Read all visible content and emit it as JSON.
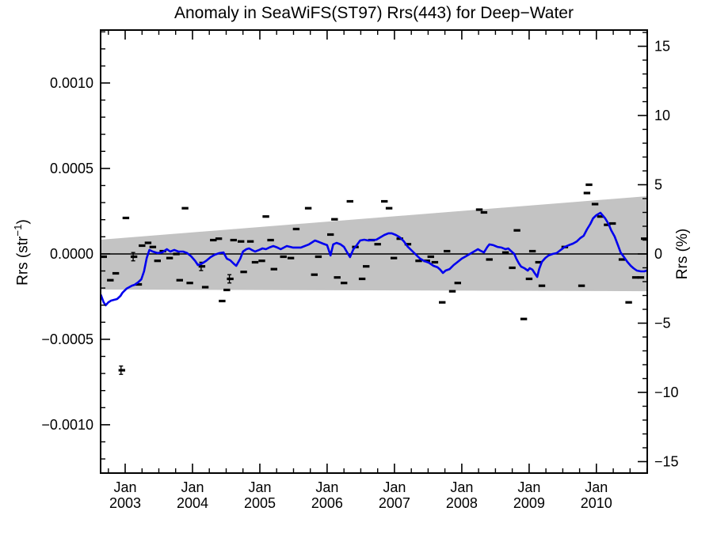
{
  "chart_data": {
    "type": "scatter",
    "title": "Anomaly in SeaWiFS(ST97) Rrs(443) for Deep−Water",
    "ylabel_left": {
      "pre": "Rrs (str",
      "sup": "−1",
      "post": ")"
    },
    "ylabel_right": "Rrs (%)",
    "axes": {
      "x_range": [
        2002.635,
        2010.755
      ],
      "y_pct_range": [
        -15.83,
        16.17
      ],
      "y_rrs_range": [
        -0.001283,
        0.00131
      ],
      "x_ticks": [
        {
          "year": 2003,
          "month_label": "Jan",
          "year_label": "2003"
        },
        {
          "year": 2004,
          "month_label": "Jan",
          "year_label": "2004"
        },
        {
          "year": 2005,
          "month_label": "Jan",
          "year_label": "2005"
        },
        {
          "year": 2006,
          "month_label": "Jan",
          "year_label": "2006"
        },
        {
          "year": 2007,
          "month_label": "Jan",
          "year_label": "2007"
        },
        {
          "year": 2008,
          "month_label": "Jan",
          "year_label": "2008"
        },
        {
          "year": 2009,
          "month_label": "Jan",
          "year_label": "2009"
        },
        {
          "year": 2010,
          "month_label": "Jan",
          "year_label": "2010"
        }
      ],
      "x_minor_step": 0.25,
      "y_left_ticks": [
        {
          "value": 0.001,
          "label": "0.0010"
        },
        {
          "value": 0.0005,
          "label": "0.0005"
        },
        {
          "value": 0.0,
          "label": "0.0000"
        },
        {
          "value": -0.0005,
          "label": "−0.0005"
        },
        {
          "value": -0.001,
          "label": "−0.0010"
        }
      ],
      "y_left_minor_step": 0.0001,
      "y_right_ticks": [
        {
          "value": 15,
          "label": "15"
        },
        {
          "value": 10,
          "label": "10"
        },
        {
          "value": 5,
          "label": "5"
        },
        {
          "value": 0,
          "label": "0"
        },
        {
          "value": -5,
          "label": "−5"
        },
        {
          "value": -10,
          "label": "−10"
        },
        {
          "value": -15,
          "label": "−15"
        }
      ],
      "y_right_minor_step": 1,
      "grid": "off",
      "legend": "none"
    },
    "series": [
      {
        "name": "trend-significance-band",
        "type": "band",
        "unit": "%",
        "color": "#c3c3c3",
        "x": [
          2002.635,
          2010.755
        ],
        "top": [
          1.03,
          4.17
        ],
        "bottom": [
          -2.57,
          -2.69
        ]
      },
      {
        "name": "monthly-anomaly-points",
        "type": "scatter",
        "unit": "%",
        "color": "#000000",
        "points": [
          [
            2002.68,
            -0.2
          ],
          [
            2002.78,
            -1.9
          ],
          [
            2002.86,
            -1.4
          ],
          [
            2003.01,
            2.6
          ],
          [
            2003.2,
            -2.2
          ],
          [
            2003.25,
            0.6
          ],
          [
            2003.34,
            0.8
          ],
          [
            2003.41,
            0.5
          ],
          [
            2003.48,
            -0.5
          ],
          [
            2003.56,
            0.2
          ],
          [
            2003.66,
            -0.3
          ],
          [
            2003.76,
            0.0
          ],
          [
            2003.81,
            -1.9
          ],
          [
            2003.89,
            3.3
          ],
          [
            2003.96,
            -2.1
          ],
          [
            2004.19,
            -2.4
          ],
          [
            2004.31,
            1.0
          ],
          [
            2004.39,
            1.1
          ],
          [
            2004.44,
            -3.4
          ],
          [
            2004.51,
            -2.6
          ],
          [
            2004.61,
            1.0
          ],
          [
            2004.72,
            0.9
          ],
          [
            2004.76,
            -1.3
          ],
          [
            2004.86,
            0.9
          ],
          [
            2004.93,
            -0.6
          ],
          [
            2005.03,
            -0.5
          ],
          [
            2005.09,
            2.7
          ],
          [
            2005.16,
            1.0
          ],
          [
            2005.21,
            -1.1
          ],
          [
            2005.35,
            -0.2
          ],
          [
            2005.46,
            -0.3
          ],
          [
            2005.54,
            1.8
          ],
          [
            2005.72,
            3.3
          ],
          [
            2005.81,
            -1.5
          ],
          [
            2005.87,
            -0.2
          ],
          [
            2006.05,
            1.4
          ],
          [
            2006.11,
            2.5
          ],
          [
            2006.15,
            -1.7
          ],
          [
            2006.25,
            -2.1
          ],
          [
            2006.34,
            3.8
          ],
          [
            2006.42,
            0.5
          ],
          [
            2006.52,
            -1.8
          ],
          [
            2006.58,
            -0.9
          ],
          [
            2006.66,
            1.0
          ],
          [
            2006.75,
            0.7
          ],
          [
            2006.85,
            3.8
          ],
          [
            2006.92,
            3.3
          ],
          [
            2006.99,
            -0.3
          ],
          [
            2007.08,
            1.1
          ],
          [
            2007.2,
            0.7
          ],
          [
            2007.36,
            -0.5
          ],
          [
            2007.48,
            -0.5
          ],
          [
            2007.54,
            -0.2
          ],
          [
            2007.6,
            -0.6
          ],
          [
            2007.71,
            -3.5
          ],
          [
            2007.78,
            0.2
          ],
          [
            2007.86,
            -2.7
          ],
          [
            2007.94,
            -2.1
          ],
          [
            2008.26,
            3.2
          ],
          [
            2008.33,
            3.0
          ],
          [
            2008.41,
            -0.4
          ],
          [
            2008.65,
            0.1
          ],
          [
            2008.75,
            -1.0
          ],
          [
            2008.82,
            1.7
          ],
          [
            2008.92,
            -4.7
          ],
          [
            2009.0,
            -1.8
          ],
          [
            2009.05,
            0.2
          ],
          [
            2009.14,
            -0.6
          ],
          [
            2009.19,
            -2.3
          ],
          [
            2009.53,
            0.5
          ],
          [
            2009.78,
            -2.3
          ],
          [
            2009.86,
            4.4
          ],
          [
            2009.89,
            5.0
          ],
          [
            2009.98,
            3.6
          ],
          [
            2010.06,
            2.7
          ],
          [
            2010.16,
            2.1
          ],
          [
            2010.24,
            2.2
          ],
          [
            2010.38,
            -0.4
          ],
          [
            2010.48,
            -3.5
          ],
          [
            2010.58,
            -1.7
          ],
          [
            2010.66,
            -1.7
          ],
          [
            2010.71,
            1.1
          ]
        ],
        "error_bar_points": [
          [
            2002.95,
            -8.4,
            0.3
          ],
          [
            2003.13,
            -0.2,
            0.3
          ],
          [
            2004.14,
            -0.9,
            0.3
          ],
          [
            2004.56,
            -1.8,
            0.3
          ]
        ]
      },
      {
        "name": "smoothed-anomaly-line",
        "type": "line",
        "unit": "%",
        "color": "#0000ee",
        "points": [
          [
            2002.64,
            -2.97
          ],
          [
            2002.68,
            -3.49
          ],
          [
            2002.71,
            -3.71
          ],
          [
            2002.75,
            -3.49
          ],
          [
            2002.79,
            -3.37
          ],
          [
            2002.84,
            -3.31
          ],
          [
            2002.88,
            -3.26
          ],
          [
            2002.93,
            -3.03
          ],
          [
            2002.96,
            -2.8
          ],
          [
            2003.02,
            -2.51
          ],
          [
            2003.06,
            -2.4
          ],
          [
            2003.1,
            -2.29
          ],
          [
            2003.14,
            -2.23
          ],
          [
            2003.19,
            -2.06
          ],
          [
            2003.24,
            -1.83
          ],
          [
            2003.28,
            -1.26
          ],
          [
            2003.32,
            -0.29
          ],
          [
            2003.36,
            0.29
          ],
          [
            2003.41,
            0.17
          ],
          [
            2003.48,
            0.06
          ],
          [
            2003.55,
            0.11
          ],
          [
            2003.62,
            0.34
          ],
          [
            2003.67,
            0.17
          ],
          [
            2003.73,
            0.29
          ],
          [
            2003.79,
            0.17
          ],
          [
            2003.86,
            0.17
          ],
          [
            2003.92,
            0.06
          ],
          [
            2003.98,
            -0.17
          ],
          [
            2004.04,
            -0.51
          ],
          [
            2004.08,
            -0.8
          ],
          [
            2004.14,
            -0.69
          ],
          [
            2004.2,
            -0.51
          ],
          [
            2004.27,
            -0.23
          ],
          [
            2004.33,
            -0.06
          ],
          [
            2004.4,
            0.06
          ],
          [
            2004.46,
            0.11
          ],
          [
            2004.51,
            -0.34
          ],
          [
            2004.56,
            -0.46
          ],
          [
            2004.61,
            -0.69
          ],
          [
            2004.65,
            -0.86
          ],
          [
            2004.71,
            -0.34
          ],
          [
            2004.75,
            0.17
          ],
          [
            2004.8,
            0.34
          ],
          [
            2004.84,
            0.4
          ],
          [
            2004.88,
            0.29
          ],
          [
            2004.93,
            0.17
          ],
          [
            2004.99,
            0.29
          ],
          [
            2005.04,
            0.4
          ],
          [
            2005.09,
            0.34
          ],
          [
            2005.14,
            0.46
          ],
          [
            2005.2,
            0.57
          ],
          [
            2005.26,
            0.46
          ],
          [
            2005.31,
            0.34
          ],
          [
            2005.4,
            0.57
          ],
          [
            2005.49,
            0.46
          ],
          [
            2005.61,
            0.46
          ],
          [
            2005.73,
            0.69
          ],
          [
            2005.82,
            0.97
          ],
          [
            2005.88,
            0.86
          ],
          [
            2005.94,
            0.74
          ],
          [
            2006.0,
            0.63
          ],
          [
            2006.05,
            -0.11
          ],
          [
            2006.09,
            0.69
          ],
          [
            2006.14,
            0.8
          ],
          [
            2006.2,
            0.69
          ],
          [
            2006.25,
            0.51
          ],
          [
            2006.29,
            0.17
          ],
          [
            2006.34,
            -0.23
          ],
          [
            2006.39,
            0.34
          ],
          [
            2006.44,
            0.63
          ],
          [
            2006.49,
            0.97
          ],
          [
            2006.55,
            1.03
          ],
          [
            2006.61,
            0.97
          ],
          [
            2006.73,
            1.03
          ],
          [
            2006.79,
            1.2
          ],
          [
            2006.85,
            1.37
          ],
          [
            2006.91,
            1.49
          ],
          [
            2006.96,
            1.49
          ],
          [
            2007.02,
            1.37
          ],
          [
            2007.08,
            1.2
          ],
          [
            2007.14,
            0.91
          ],
          [
            2007.2,
            0.51
          ],
          [
            2007.26,
            0.23
          ],
          [
            2007.32,
            -0.06
          ],
          [
            2007.38,
            -0.34
          ],
          [
            2007.44,
            -0.51
          ],
          [
            2007.51,
            -0.63
          ],
          [
            2007.58,
            -0.86
          ],
          [
            2007.64,
            -0.97
          ],
          [
            2007.68,
            -1.14
          ],
          [
            2007.72,
            -1.37
          ],
          [
            2007.76,
            -1.2
          ],
          [
            2007.82,
            -1.09
          ],
          [
            2007.88,
            -0.8
          ],
          [
            2007.94,
            -0.57
          ],
          [
            2008.0,
            -0.34
          ],
          [
            2008.06,
            -0.17
          ],
          [
            2008.12,
            0.0
          ],
          [
            2008.18,
            0.17
          ],
          [
            2008.24,
            0.34
          ],
          [
            2008.28,
            0.23
          ],
          [
            2008.33,
            0.11
          ],
          [
            2008.38,
            0.51
          ],
          [
            2008.41,
            0.69
          ],
          [
            2008.47,
            0.63
          ],
          [
            2008.53,
            0.51
          ],
          [
            2008.59,
            0.46
          ],
          [
            2008.65,
            0.34
          ],
          [
            2008.69,
            0.4
          ],
          [
            2008.74,
            0.17
          ],
          [
            2008.78,
            0.0
          ],
          [
            2008.81,
            -0.34
          ],
          [
            2008.85,
            -0.69
          ],
          [
            2008.88,
            -0.91
          ],
          [
            2008.93,
            -1.03
          ],
          [
            2008.98,
            -1.2
          ],
          [
            2009.01,
            -1.03
          ],
          [
            2009.05,
            -1.14
          ],
          [
            2009.08,
            -1.37
          ],
          [
            2009.12,
            -1.66
          ],
          [
            2009.15,
            -1.09
          ],
          [
            2009.19,
            -0.57
          ],
          [
            2009.24,
            -0.29
          ],
          [
            2009.29,
            -0.11
          ],
          [
            2009.35,
            0.0
          ],
          [
            2009.41,
            0.06
          ],
          [
            2009.47,
            0.29
          ],
          [
            2009.53,
            0.51
          ],
          [
            2009.59,
            0.63
          ],
          [
            2009.65,
            0.74
          ],
          [
            2009.71,
            0.91
          ],
          [
            2009.76,
            1.14
          ],
          [
            2009.81,
            1.31
          ],
          [
            2009.86,
            1.77
          ],
          [
            2009.91,
            2.17
          ],
          [
            2009.95,
            2.57
          ],
          [
            2010.0,
            2.8
          ],
          [
            2010.06,
            2.97
          ],
          [
            2010.09,
            2.8
          ],
          [
            2010.13,
            2.57
          ],
          [
            2010.18,
            2.17
          ],
          [
            2010.22,
            1.71
          ],
          [
            2010.27,
            1.26
          ],
          [
            2010.32,
            0.63
          ],
          [
            2010.36,
            0.11
          ],
          [
            2010.41,
            -0.23
          ],
          [
            2010.46,
            -0.57
          ],
          [
            2010.51,
            -0.86
          ],
          [
            2010.55,
            -1.03
          ],
          [
            2010.6,
            -1.2
          ],
          [
            2010.66,
            -1.26
          ],
          [
            2010.71,
            -1.26
          ],
          [
            2010.75,
            -1.2
          ]
        ]
      },
      {
        "name": "zero-reference-line",
        "type": "line",
        "unit": "%",
        "color": "#000000",
        "points": [
          [
            2002.635,
            0.0
          ],
          [
            2010.755,
            0.0
          ]
        ]
      }
    ]
  }
}
